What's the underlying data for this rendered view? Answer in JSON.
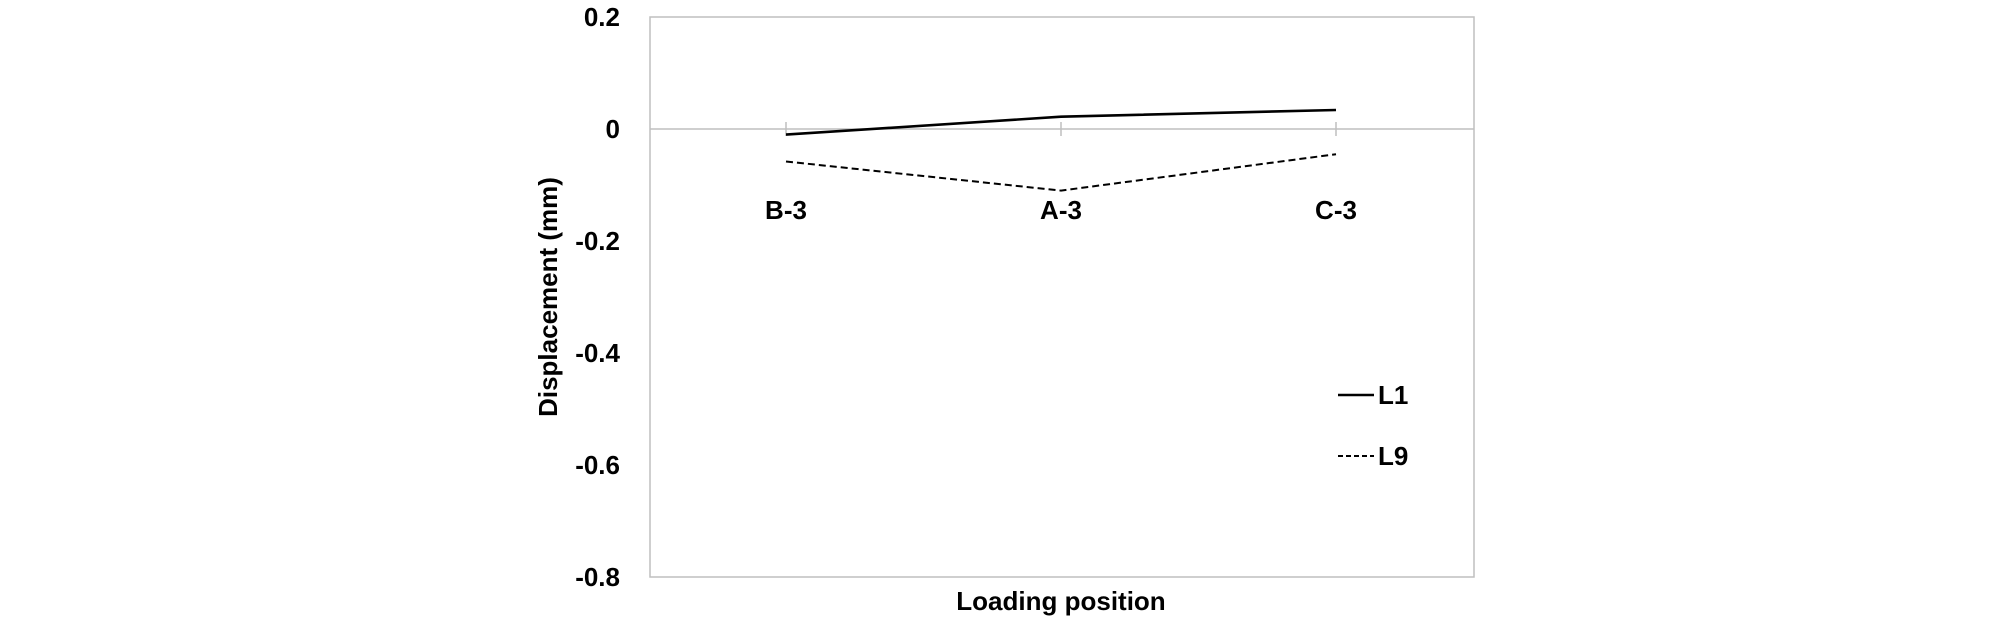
{
  "chart_data": {
    "type": "line",
    "categories": [
      "B-3",
      "A-3",
      "C-3"
    ],
    "series": [
      {
        "name": "L1",
        "values": [
          -0.01,
          0.022,
          0.034
        ],
        "style": "solid",
        "color": "#000000"
      },
      {
        "name": "L9",
        "values": [
          -0.058,
          -0.11,
          -0.045
        ],
        "style": "dashed",
        "color": "#000000"
      }
    ],
    "xlabel": "Loading position",
    "ylabel": "Displacement (mm)",
    "ylim": [
      -0.8,
      0.2
    ],
    "yticks": [
      "0.2",
      "0",
      "-0.2",
      "-0.4",
      "-0.6",
      "-0.8"
    ],
    "ytick_values": [
      0.2,
      0,
      -0.2,
      -0.4,
      -0.6,
      -0.8
    ],
    "grid": false,
    "zero_line": true,
    "legend_position": "right"
  }
}
